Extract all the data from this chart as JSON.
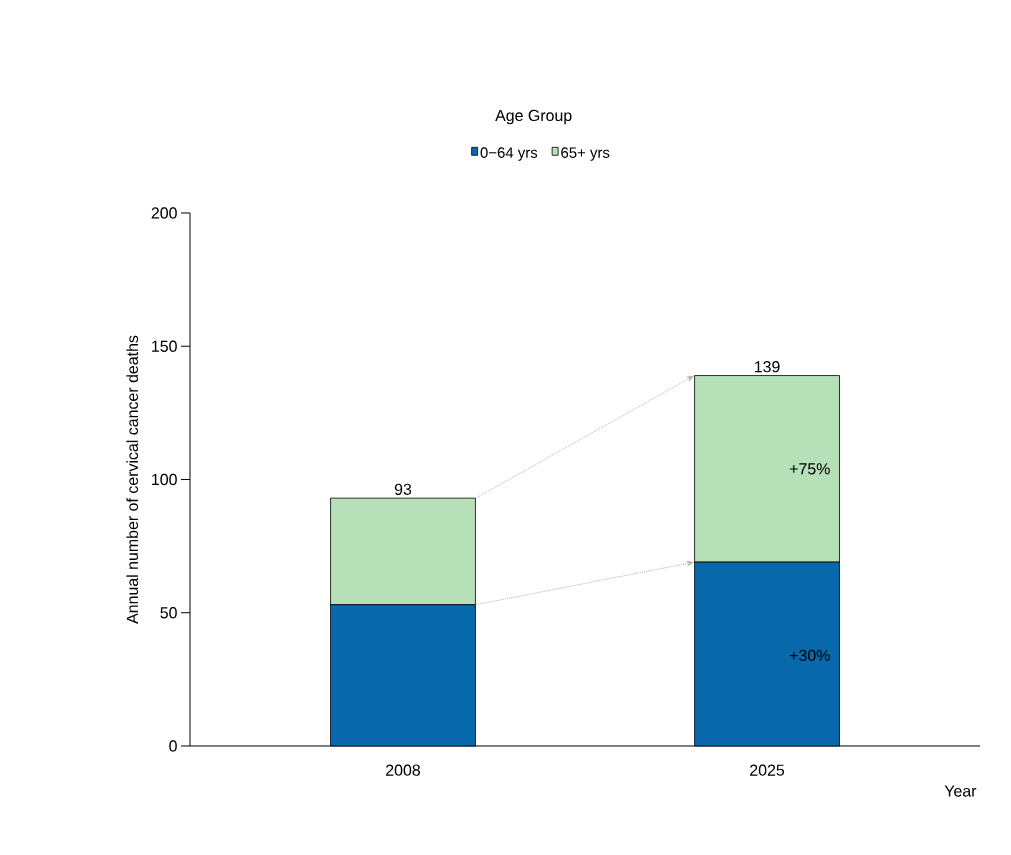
{
  "chart_data": {
    "type": "bar",
    "stacked": true,
    "categories": [
      "2008",
      "2025"
    ],
    "series": [
      {
        "name": "0−64 yrs",
        "color": "#0868ac",
        "values": [
          53,
          69
        ]
      },
      {
        "name": "65+ yrs",
        "color": "#b5e0b8",
        "values": [
          40,
          70
        ]
      }
    ],
    "totals": [
      "93",
      "139"
    ],
    "annotations": [
      "+75%",
      "+30%"
    ],
    "ylim": [
      0,
      200
    ],
    "yticks": [
      0,
      50,
      100,
      150,
      200
    ],
    "xlabel": "Year",
    "ylabel": "Annual number of cervical cancer deaths",
    "legend_title": "Age Group",
    "legend": "top",
    "grid": false
  }
}
